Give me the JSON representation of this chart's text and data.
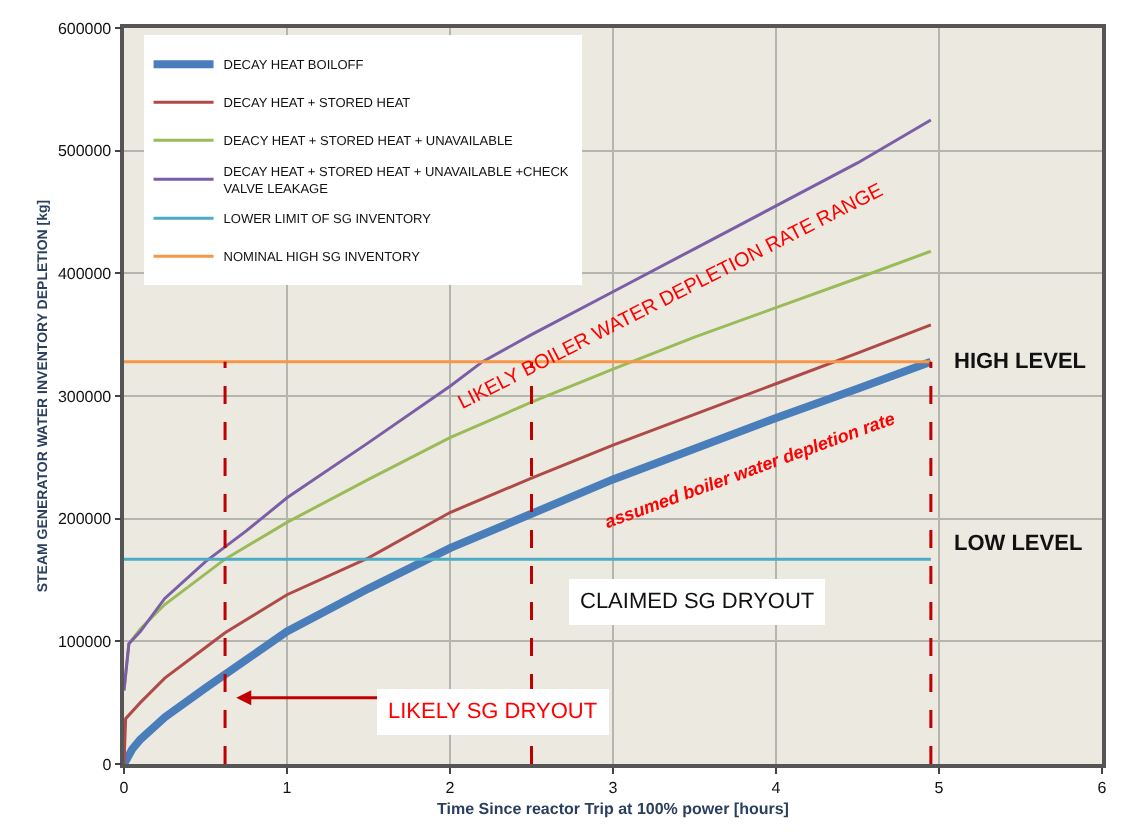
{
  "chart_data": {
    "type": "line",
    "xlabel": "Time Since reactor Trip at 100% power [hours]",
    "ylabel": "STEAM GENERATOR WATER INVENTORY DEPLETION [kg]",
    "xlim": [
      0,
      6
    ],
    "xticks": [
      0,
      1,
      2,
      3,
      4,
      5,
      6
    ],
    "ylim": [
      0,
      600000
    ],
    "yticks": [
      0,
      100000,
      200000,
      300000,
      400000,
      500000,
      600000
    ],
    "grid": true,
    "legend": "top left",
    "marker": "none",
    "line_style": "solid",
    "series": [
      {
        "name": "DECAY HEAT BOILOFF",
        "color": "#4a7ebb",
        "x": [
          0,
          0.05,
          0.1,
          0.25,
          0.5,
          0.75,
          1,
          1.5,
          2,
          2.5,
          3,
          3.5,
          4,
          4.5,
          4.95
        ],
        "values": [
          0,
          12000,
          20000,
          38000,
          62000,
          85000,
          108000,
          143000,
          176000,
          204000,
          232000,
          257000,
          282000,
          306000,
          328000
        ]
      },
      {
        "name": "DECAY HEAT + STORED HEAT",
        "color": "#b04a48",
        "x": [
          0,
          0.01,
          0.1,
          0.25,
          0.5,
          0.62,
          1,
          1.5,
          2,
          2.5,
          3,
          3.5,
          4,
          4.5,
          4.95
        ],
        "values": [
          0,
          37000,
          50000,
          70000,
          95000,
          107000,
          138000,
          168000,
          205000,
          233000,
          260000,
          285000,
          310000,
          335000,
          358000
        ]
      },
      {
        "name": "DEACY HEAT + STORED HEAT + UNAVAILABLE",
        "color": "#9bbb59",
        "x": [
          0,
          0.03,
          0.1,
          0.25,
          0.5,
          0.62,
          1,
          1.5,
          2,
          2.5,
          3,
          3.5,
          4,
          4.5,
          4.95
        ],
        "values": [
          60000,
          98000,
          110000,
          130000,
          155000,
          167000,
          197000,
          232000,
          266000,
          295000,
          322000,
          348000,
          372000,
          396000,
          418000
        ]
      },
      {
        "name": "DECAY HEAT + STORED HEAT + UNAVAILABLE +CHECK VALVE LEAKAGE",
        "color": "#7b5ea7",
        "x": [
          0,
          0.03,
          0.1,
          0.25,
          0.5,
          0.75,
          1,
          1.5,
          2,
          2.2,
          2.5,
          3,
          3.5,
          4,
          4.5,
          4.95
        ],
        "values": [
          60000,
          98000,
          108000,
          135000,
          165000,
          190000,
          217000,
          262000,
          308000,
          328000,
          350000,
          385000,
          420000,
          455000,
          490000,
          525000
        ]
      },
      {
        "name": "LOWER LIMIT OF SG INVENTORY",
        "color": "#4bacc6",
        "x": [
          0,
          4.95
        ],
        "values": [
          167000,
          167000
        ]
      },
      {
        "name": "NOMINAL HIGH SG INVENTORY",
        "color": "#f79646",
        "x": [
          0,
          4.95
        ],
        "values": [
          328000,
          328000
        ]
      }
    ],
    "ref_lines": [
      {
        "axis": "x",
        "value": 0.62,
        "label": null,
        "color": "#c00000",
        "line_style": "dashed"
      },
      {
        "axis": "x",
        "value": 2.5,
        "label": null,
        "color": "#c00000",
        "line_style": "dashed"
      },
      {
        "axis": "x",
        "value": 4.95,
        "label": null,
        "color": "#c00000",
        "line_style": "dashed"
      }
    ],
    "annotations": [
      "HIGH LEVEL",
      "LOW LEVEL",
      "CLAIMED SG DRYOUT",
      "LIKELY SG DRYOUT",
      "LIKELY BOILER WATER DEPLETION RATE RANGE",
      "assumed boiler water depletion rate"
    ]
  }
}
